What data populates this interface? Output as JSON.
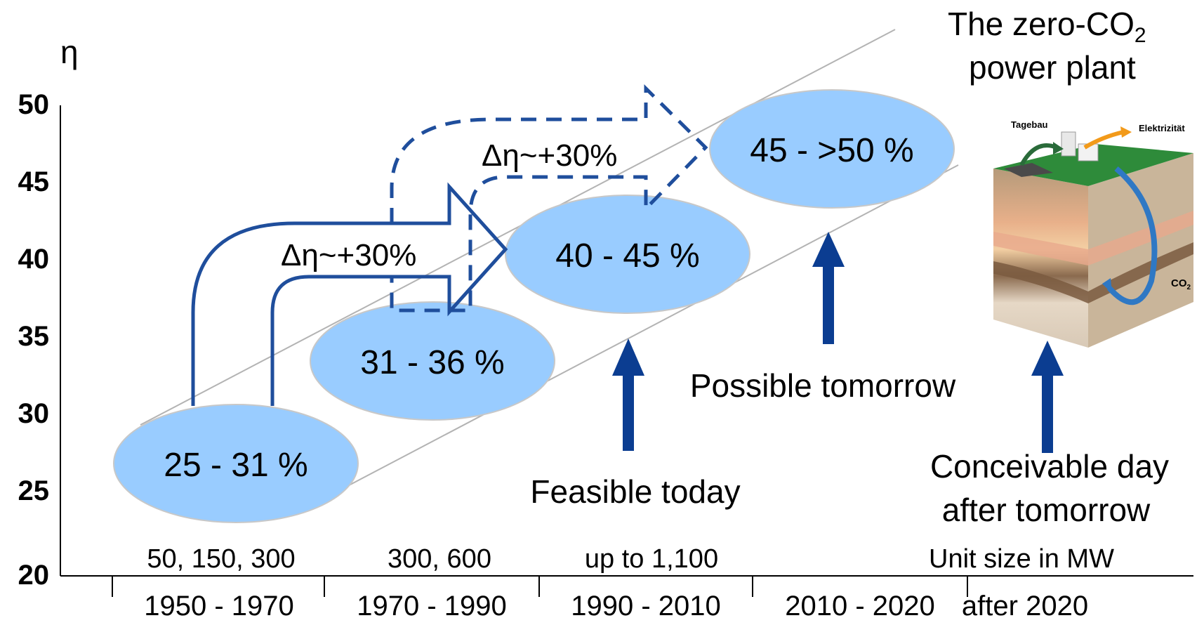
{
  "y_axis": {
    "label": "η",
    "ticks": [
      "50",
      "45",
      "40",
      "35",
      "30",
      "25",
      "20"
    ]
  },
  "periods": [
    "1950 - 1970",
    "1970 - 1990",
    "1990 - 2010",
    "2010 - 2020",
    "after 2020"
  ],
  "unit_sizes": [
    "50, 150, 300",
    "300, 600",
    "up to 1,100",
    "Unit size in MW"
  ],
  "efficiency_stages": [
    {
      "label": "25 - 31 %",
      "min": 25,
      "max": 31
    },
    {
      "label": "31 - 36 %",
      "min": 31,
      "max": 36
    },
    {
      "label": "40 - 45 %",
      "min": 40,
      "max": 45
    },
    {
      "label": "45 - >50 %",
      "min": 45,
      "max": 50
    }
  ],
  "gain_labels": {
    "solid": "Δη~+30%",
    "dashed": "Δη~+30%"
  },
  "captions": {
    "feasible": "Feasible today",
    "possible": "Possible tomorrow",
    "conceivable_line1": "Conceivable day",
    "conceivable_line2": "after tomorrow"
  },
  "title": {
    "line1": "The zero-CO",
    "line1_sub": "2",
    "line2": "power plant"
  },
  "illustration": {
    "tagebau": "Tagebau",
    "elektrizitaet": "Elektrizität",
    "co2": "CO",
    "co2_sub": "2"
  },
  "colors": {
    "ellipse_fill": "#99ccff",
    "arrow_blue": "#0b3d91",
    "outline_blue": "#1f4e9c"
  }
}
